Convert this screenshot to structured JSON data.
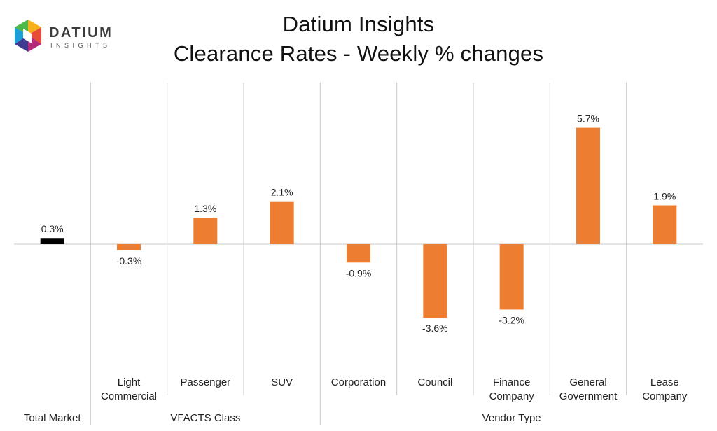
{
  "header": {
    "title": "Datium Insights",
    "subtitle": "Clearance Rates - Weekly % changes"
  },
  "logo": {
    "word": "DATIUM",
    "sub": "INSIGHTS"
  },
  "colors": {
    "total": "#000000",
    "bars": "#ED7D31",
    "axis": "#C9C9C9",
    "text": "#222222"
  },
  "chart_data": {
    "type": "bar",
    "title": "Clearance Rates - Weekly % changes",
    "xlabel": "",
    "ylabel": "",
    "ylim": [
      -6,
      6
    ],
    "grid": false,
    "legend": "none",
    "categories": [
      "Total Market",
      "Light Commercial",
      "Passenger",
      "SUV",
      "Corporation",
      "Council",
      "Finance Company",
      "General Government",
      "Lease Company"
    ],
    "category_lines": [
      [],
      [
        "Light",
        "Commercial"
      ],
      [
        "Passenger"
      ],
      [
        "SUV"
      ],
      [
        "Corporation"
      ],
      [
        "Council"
      ],
      [
        "Finance",
        "Company"
      ],
      [
        "General",
        "Government"
      ],
      [
        "Lease",
        "Company"
      ]
    ],
    "values": [
      0.3,
      -0.3,
      1.3,
      2.1,
      -0.9,
      -3.6,
      -3.2,
      5.7,
      1.9
    ],
    "data_labels": [
      "0.3%",
      "-0.3%",
      "1.3%",
      "2.1%",
      "-0.9%",
      "-3.6%",
      "-3.2%",
      "5.7%",
      "1.9%"
    ],
    "groups": [
      {
        "label": "Total Market",
        "start": 0,
        "end": 0
      },
      {
        "label": "VFACTS Class",
        "start": 1,
        "end": 3
      },
      {
        "label": "Vendor Type",
        "start": 4,
        "end": 8
      }
    ]
  }
}
